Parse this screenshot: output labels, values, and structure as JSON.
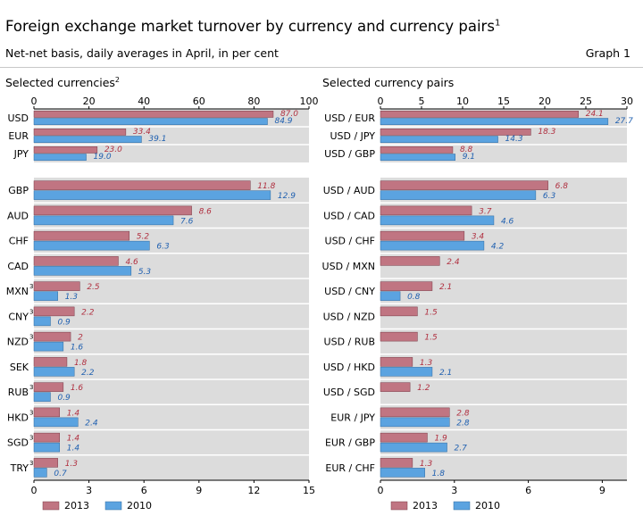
{
  "header": {
    "title": "Foreign exchange market turnover by currency and currency pairs",
    "title_note": "1",
    "subtitle": "Net-net basis, daily averages in April, in per cent",
    "graph_label": "Graph 1"
  },
  "colors": {
    "series_2013": "#c07582",
    "series_2010": "#5ba3e0",
    "panel_bg": "#dcdcdc",
    "label_2013": "#b03040",
    "label_2010": "#2060b0"
  },
  "chart_data": [
    {
      "type": "bar",
      "orientation": "horizontal",
      "title": "Selected currencies",
      "title_note": "2",
      "legend": [
        "2013",
        "2010"
      ],
      "top_section": {
        "axis_position": "top",
        "xlim": [
          0,
          100
        ],
        "ticks": [
          "0",
          "20",
          "40",
          "60",
          "80",
          "100"
        ],
        "categories": [
          {
            "label": "USD",
            "note": "",
            "v2013": 87.0,
            "l2013": "87.0",
            "v2010": 84.9,
            "l2010": "84.9"
          },
          {
            "label": "EUR",
            "note": "",
            "v2013": 33.4,
            "l2013": "33.4",
            "v2010": 39.1,
            "l2010": "39.1"
          },
          {
            "label": "JPY",
            "note": "",
            "v2013": 23.0,
            "l2013": "23.0",
            "v2010": 19.0,
            "l2010": "19.0"
          }
        ]
      },
      "bottom_section": {
        "axis_position": "bottom",
        "xlim": [
          0,
          15
        ],
        "ticks": [
          "0",
          "3",
          "6",
          "9",
          "12",
          "15"
        ],
        "categories": [
          {
            "label": "GBP",
            "note": "",
            "v2013": 11.8,
            "l2013": "11.8",
            "v2010": 12.9,
            "l2010": "12.9"
          },
          {
            "label": "AUD",
            "note": "",
            "v2013": 8.6,
            "l2013": "8.6",
            "v2010": 7.6,
            "l2010": "7.6"
          },
          {
            "label": "CHF",
            "note": "",
            "v2013": 5.2,
            "l2013": "5.2",
            "v2010": 6.3,
            "l2010": "6.3"
          },
          {
            "label": "CAD",
            "note": "",
            "v2013": 4.6,
            "l2013": "4.6",
            "v2010": 5.3,
            "l2010": "5.3"
          },
          {
            "label": "MXN",
            "note": "3",
            "v2013": 2.5,
            "l2013": "2.5",
            "v2010": 1.3,
            "l2010": "1.3"
          },
          {
            "label": "CNY",
            "note": "3",
            "v2013": 2.2,
            "l2013": "2.2",
            "v2010": 0.9,
            "l2010": "0.9"
          },
          {
            "label": "NZD",
            "note": "3",
            "v2013": 2.0,
            "l2013": "2",
            "v2010": 1.6,
            "l2010": "1.6"
          },
          {
            "label": "SEK",
            "note": "",
            "v2013": 1.8,
            "l2013": "1.8",
            "v2010": 2.2,
            "l2010": "2.2"
          },
          {
            "label": "RUB",
            "note": "3",
            "v2013": 1.6,
            "l2013": "1.6",
            "v2010": 0.9,
            "l2010": "0.9"
          },
          {
            "label": "HKD",
            "note": "3",
            "v2013": 1.4,
            "l2013": "1.4",
            "v2010": 2.4,
            "l2010": "2.4"
          },
          {
            "label": "SGD",
            "note": "3",
            "v2013": 1.4,
            "l2013": "1.4",
            "v2010": 1.4,
            "l2010": "1.4"
          },
          {
            "label": "TRY",
            "note": "3",
            "v2013": 1.3,
            "l2013": "1.3",
            "v2010": 0.7,
            "l2010": "0.7"
          }
        ]
      }
    },
    {
      "type": "bar",
      "orientation": "horizontal",
      "title": "Selected currency pairs",
      "title_note": "",
      "legend": [
        "2013",
        "2010"
      ],
      "top_section": {
        "axis_position": "top",
        "xlim": [
          0,
          30
        ],
        "ticks": [
          "0",
          "5",
          "10",
          "15",
          "20",
          "25",
          "30"
        ],
        "categories": [
          {
            "label": "USD / EUR",
            "note": "",
            "v2013": 24.1,
            "l2013": "24.1",
            "v2010": 27.7,
            "l2010": "27.7"
          },
          {
            "label": "USD / JPY",
            "note": "",
            "v2013": 18.3,
            "l2013": "18.3",
            "v2010": 14.3,
            "l2010": "14.3"
          },
          {
            "label": "USD / GBP",
            "note": "",
            "v2013": 8.8,
            "l2013": "8.8",
            "v2010": 9.1,
            "l2010": "9.1"
          }
        ]
      },
      "bottom_section": {
        "axis_position": "bottom",
        "xlim": [
          0,
          10
        ],
        "ticks": [
          "0",
          "3",
          "6",
          "9"
        ],
        "categories": [
          {
            "label": "USD / AUD",
            "note": "",
            "v2013": 6.8,
            "l2013": "6.8",
            "v2010": 6.3,
            "l2010": "6.3"
          },
          {
            "label": "USD / CAD",
            "note": "",
            "v2013": 3.7,
            "l2013": "3.7",
            "v2010": 4.6,
            "l2010": "4.6"
          },
          {
            "label": "USD / CHF",
            "note": "",
            "v2013": 3.4,
            "l2013": "3.4",
            "v2010": 4.2,
            "l2010": "4.2"
          },
          {
            "label": "USD / MXN",
            "note": "",
            "v2013": 2.4,
            "l2013": "2.4",
            "v2010": null,
            "l2010": ""
          },
          {
            "label": "USD / CNY",
            "note": "",
            "v2013": 2.1,
            "l2013": "2.1",
            "v2010": 0.8,
            "l2010": "0.8"
          },
          {
            "label": "USD / NZD",
            "note": "",
            "v2013": 1.5,
            "l2013": "1.5",
            "v2010": null,
            "l2010": ""
          },
          {
            "label": "USD / RUB",
            "note": "",
            "v2013": 1.5,
            "l2013": "1.5",
            "v2010": null,
            "l2010": ""
          },
          {
            "label": "USD / HKD",
            "note": "",
            "v2013": 1.3,
            "l2013": "1.3",
            "v2010": 2.1,
            "l2010": "2.1"
          },
          {
            "label": "USD / SGD",
            "note": "",
            "v2013": 1.2,
            "l2013": "1.2",
            "v2010": null,
            "l2010": ""
          },
          {
            "label": "EUR / JPY",
            "note": "",
            "v2013": 2.8,
            "l2013": "2.8",
            "v2010": 2.8,
            "l2010": "2.8"
          },
          {
            "label": "EUR / GBP",
            "note": "",
            "v2013": 1.9,
            "l2013": "1.9",
            "v2010": 2.7,
            "l2010": "2.7"
          },
          {
            "label": "EUR / CHF",
            "note": "",
            "v2013": 1.3,
            "l2013": "1.3",
            "v2010": 1.8,
            "l2010": "1.8"
          }
        ]
      }
    }
  ]
}
